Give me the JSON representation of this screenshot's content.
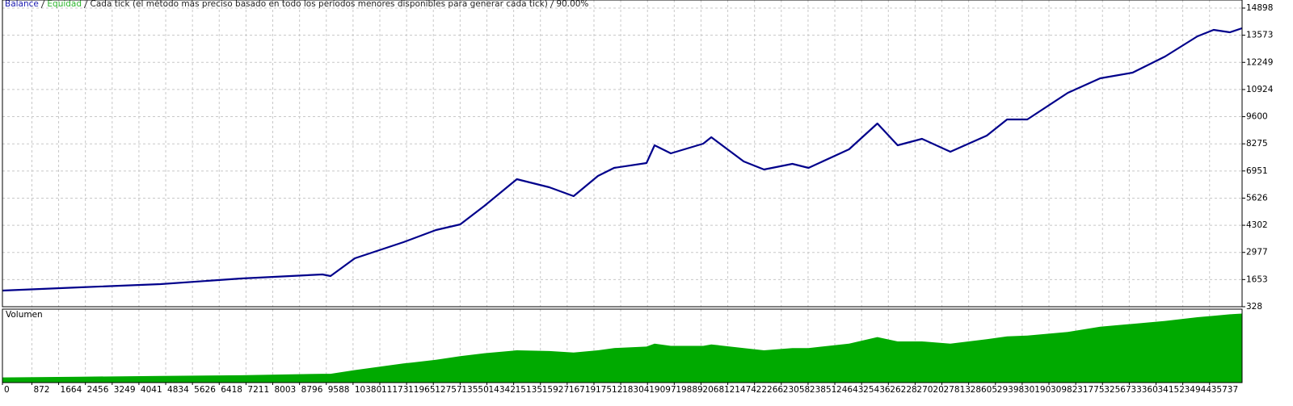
{
  "chart_data": [
    {
      "type": "line",
      "legend": [
        {
          "name": "Balance",
          "color": "#1a1ab0"
        },
        {
          "name": "Equidad",
          "color": "#2db52d"
        }
      ],
      "model_text": "Cada tick (el método más preciso basado en todo los períodos menores disponibles para generar cada tick)",
      "quality": "90.00%",
      "x": [
        0,
        2279,
        4677,
        7076,
        9474,
        9714,
        10434,
        11873,
        12832,
        13552,
        14271,
        15231,
        16190,
        16910,
        17629,
        18109,
        19068,
        19308,
        19788,
        20747,
        20987,
        21946,
        22546,
        23385,
        23865,
        25064,
        25904,
        26504,
        27223,
        28063,
        29142,
        29742,
        30341,
        31541,
        32500,
        33459,
        34419,
        35378,
        35858,
        36338,
        36698
      ],
      "series": [
        {
          "name": "Balance",
          "color": "#00008b",
          "values": [
            1115,
            1273,
            1430,
            1706,
            1903,
            1824,
            2690,
            3478,
            4069,
            4344,
            5250,
            6550,
            6156,
            5723,
            6707,
            7100,
            7337,
            8203,
            7809,
            8282,
            8597,
            7416,
            7022,
            7298,
            7100,
            8006,
            9266,
            8203,
            8518,
            7888,
            8676,
            9463,
            9463,
            10763,
            11472,
            11747,
            12535,
            13519,
            13834,
            13715,
            13912
          ]
        }
      ],
      "xlim": [
        0,
        36700
      ],
      "ylim": [
        328,
        15292
      ],
      "yticks": [
        328,
        1653,
        2977,
        4302,
        5626,
        6951,
        8275,
        9600,
        10924,
        12249,
        13573,
        14898
      ],
      "grid": true
    },
    {
      "type": "area",
      "title": "Volumen",
      "color": "#00aa00",
      "x": [
        0,
        2279,
        4677,
        7076,
        9474,
        9714,
        10434,
        11873,
        12832,
        13552,
        14271,
        15231,
        16190,
        16910,
        17629,
        18109,
        19068,
        19308,
        19788,
        20747,
        20987,
        21946,
        22546,
        23385,
        23865,
        25064,
        25904,
        26504,
        27223,
        28063,
        29142,
        29742,
        30341,
        31541,
        32500,
        33459,
        34419,
        35378,
        35858,
        36338,
        36698
      ],
      "values": [
        7,
        8,
        9,
        10,
        12,
        12,
        17,
        26,
        31,
        36,
        40,
        44,
        43,
        41,
        44,
        47,
        49,
        53,
        50,
        50,
        52,
        47,
        44,
        47,
        47,
        53,
        62,
        56,
        56,
        53,
        59,
        63,
        64,
        69,
        76,
        80,
        84,
        89,
        91,
        93,
        94
      ],
      "xlim": [
        0,
        36700
      ],
      "ylim": [
        0,
        100
      ],
      "xticks": [
        0,
        872,
        1664,
        2456,
        3249,
        4041,
        4834,
        5626,
        6418,
        7211,
        8003,
        8796,
        9588,
        10380,
        11173,
        11965,
        12757,
        13550,
        14342,
        15135,
        15927,
        16719,
        17512,
        18304,
        19097,
        19889,
        20681,
        21474,
        22266,
        23058,
        23851,
        24643,
        25436,
        26228,
        27020,
        27813,
        28605,
        29398,
        30190,
        30982,
        31775,
        32567,
        33360,
        34152,
        34944,
        35737
      ],
      "grid": true
    }
  ]
}
